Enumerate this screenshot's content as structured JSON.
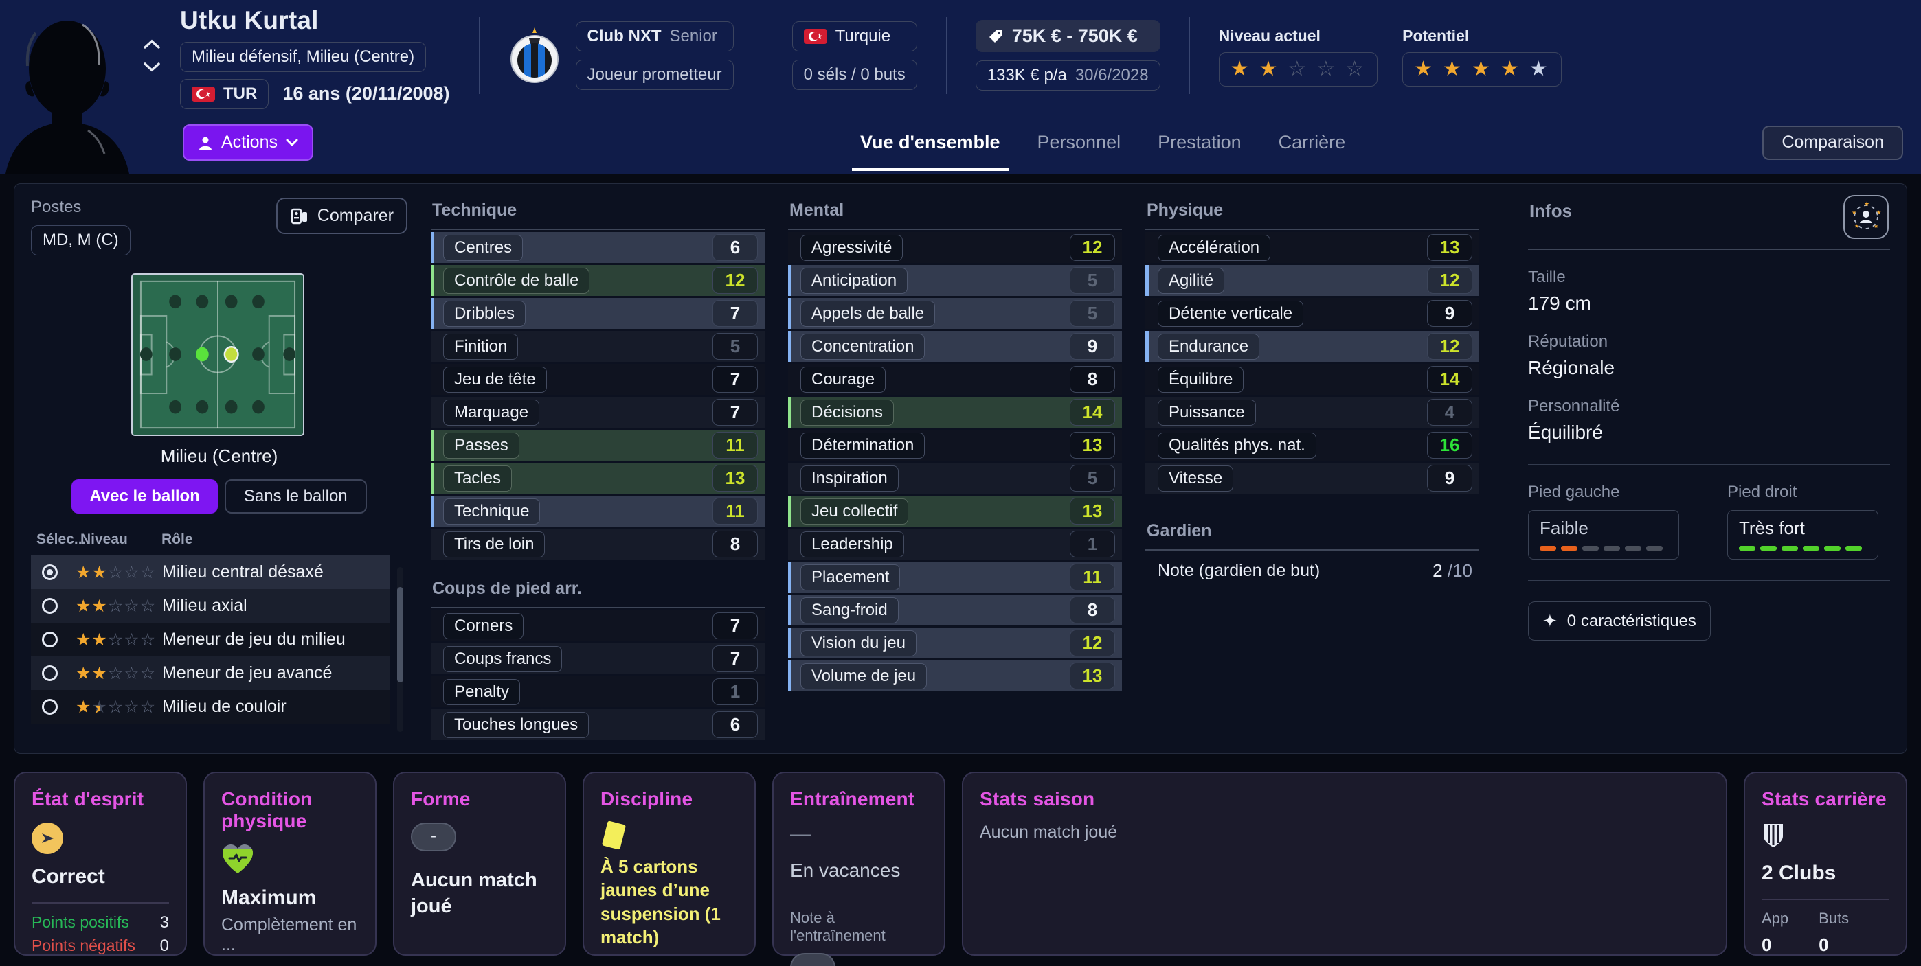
{
  "header": {
    "player_name": "Utku Kurtal",
    "position_summary": "Milieu défensif, Milieu (Centre)",
    "nationality_code": "TUR",
    "age": "16 ans (20/11/2008)",
    "club_name": "Club NXT",
    "club_team": "Senior",
    "player_status": "Joueur prometteur",
    "national_team": "Turquie",
    "intl_record": "0 séls / 0 buts",
    "transfer_value": "75K € - 750K €",
    "wage": "133K € p/a",
    "contract_expiry": "30/6/2028",
    "ability_current_label": "Niveau actuel",
    "ability_potential_label": "Potentiel",
    "stars": {
      "current_full": 2,
      "current_empty": 3,
      "potential_full": 4,
      "potential_silver": 1
    },
    "actions_label": "Actions",
    "tabs": [
      "Vue d'ensemble",
      "Personnel",
      "Prestation",
      "Carrière"
    ],
    "active_tab": "Vue d'ensemble",
    "comparison_label": "Comparaison"
  },
  "positions_panel": {
    "title": "Postes",
    "positions_value": "MD, M (C)",
    "compare_label": "Comparer",
    "pitch_caption": "Milieu (Centre)",
    "toggle_with_ball": "Avec le ballon",
    "toggle_without_ball": "Sans le ballon",
    "columns": {
      "select": "Sélec...",
      "level": "Niveau",
      "role": "Rôle"
    },
    "roles": [
      {
        "label": "Milieu central désaxé",
        "stars_full": 2,
        "stars_half": 0,
        "selected": true
      },
      {
        "label": "Milieu axial",
        "stars_full": 2,
        "stars_half": 0,
        "selected": false
      },
      {
        "label": "Meneur de jeu du milieu",
        "stars_full": 2,
        "stars_half": 0,
        "selected": false
      },
      {
        "label": "Meneur de jeu avancé",
        "stars_full": 2,
        "stars_half": 0,
        "selected": false
      },
      {
        "label": "Milieu de couloir",
        "stars_full": 1,
        "stars_half": 1,
        "selected": false
      }
    ]
  },
  "attributes": {
    "technique": {
      "title": "Technique",
      "rows": [
        {
          "label": "Centres",
          "value": 6,
          "highlight": "blue"
        },
        {
          "label": "Contrôle de balle",
          "value": 12,
          "highlight": "green"
        },
        {
          "label": "Dribbles",
          "value": 7,
          "highlight": "blue"
        },
        {
          "label": "Finition",
          "value": 5,
          "highlight": "none"
        },
        {
          "label": "Jeu de tête",
          "value": 7,
          "highlight": "none"
        },
        {
          "label": "Marquage",
          "value": 7,
          "highlight": "none"
        },
        {
          "label": "Passes",
          "value": 11,
          "highlight": "green"
        },
        {
          "label": "Tacles",
          "value": 13,
          "highlight": "green"
        },
        {
          "label": "Technique",
          "value": 11,
          "highlight": "blue"
        },
        {
          "label": "Tirs de loin",
          "value": 8,
          "highlight": "none"
        }
      ]
    },
    "set_pieces": {
      "title": "Coups de pied arr.",
      "rows": [
        {
          "label": "Corners",
          "value": 7,
          "highlight": "none"
        },
        {
          "label": "Coups francs",
          "value": 7,
          "highlight": "none"
        },
        {
          "label": "Penalty",
          "value": 1,
          "highlight": "none"
        },
        {
          "label": "Touches longues",
          "value": 6,
          "highlight": "none"
        }
      ]
    },
    "mental": {
      "title": "Mental",
      "rows": [
        {
          "label": "Agressivité",
          "value": 12,
          "highlight": "none"
        },
        {
          "label": "Anticipation",
          "value": 5,
          "highlight": "blue"
        },
        {
          "label": "Appels de balle",
          "value": 5,
          "highlight": "blue"
        },
        {
          "label": "Concentration",
          "value": 9,
          "highlight": "blue"
        },
        {
          "label": "Courage",
          "value": 8,
          "highlight": "none"
        },
        {
          "label": "Décisions",
          "value": 14,
          "highlight": "green"
        },
        {
          "label": "Détermination",
          "value": 13,
          "highlight": "none"
        },
        {
          "label": "Inspiration",
          "value": 5,
          "highlight": "none"
        },
        {
          "label": "Jeu collectif",
          "value": 13,
          "highlight": "green"
        },
        {
          "label": "Leadership",
          "value": 1,
          "highlight": "none"
        },
        {
          "label": "Placement",
          "value": 11,
          "highlight": "blue"
        },
        {
          "label": "Sang-froid",
          "value": 8,
          "highlight": "blue"
        },
        {
          "label": "Vision du jeu",
          "value": 12,
          "highlight": "blue"
        },
        {
          "label": "Volume de jeu",
          "value": 13,
          "highlight": "blue"
        }
      ]
    },
    "physical": {
      "title": "Physique",
      "rows": [
        {
          "label": "Accélération",
          "value": 13,
          "highlight": "none"
        },
        {
          "label": "Agilité",
          "value": 12,
          "highlight": "blue"
        },
        {
          "label": "Détente verticale",
          "value": 9,
          "highlight": "none"
        },
        {
          "label": "Endurance",
          "value": 12,
          "highlight": "blue"
        },
        {
          "label": "Équilibre",
          "value": 14,
          "highlight": "none"
        },
        {
          "label": "Puissance",
          "value": 4,
          "highlight": "none"
        },
        {
          "label": "Qualités phys. nat.",
          "value": 16,
          "highlight": "none"
        },
        {
          "label": "Vitesse",
          "value": 9,
          "highlight": "none"
        }
      ]
    },
    "goalkeeper": {
      "title": "Gardien",
      "row_label": "Note (gardien de but)",
      "value": "2",
      "suffix": "/10"
    }
  },
  "infos": {
    "title": "Infos",
    "height_label": "Taille",
    "height_value": "179 cm",
    "reputation_label": "Réputation",
    "reputation_value": "Régionale",
    "personality_label": "Personnalité",
    "personality_value": "Équilibré",
    "left_foot_label": "Pied gauche",
    "left_foot_value": "Faible",
    "left_foot_level": 2,
    "right_foot_label": "Pied droit",
    "right_foot_value": "Très fort",
    "right_foot_level": 6,
    "traits_label": "0 caractéristiques"
  },
  "cards": {
    "morale": {
      "title": "État d'esprit",
      "value": "Correct",
      "positive_label": "Points positifs",
      "positive_value": "3",
      "negative_label": "Points négatifs",
      "negative_value": "0"
    },
    "condition": {
      "title": "Condition physique",
      "value": "Maximum",
      "subtitle": "Complètement en ..."
    },
    "form": {
      "title": "Forme",
      "badge": "-",
      "value": "Aucun match joué"
    },
    "discipline": {
      "title": "Discipline",
      "value": "À 5 cartons jaunes d’une suspension (1 match)"
    },
    "training": {
      "title": "Entraînement",
      "dash": "—",
      "value": "En vacances",
      "note_label": "Note à l'entraînement",
      "badge": "-"
    },
    "season_stats": {
      "title": "Stats saison",
      "value": "Aucun match joué"
    },
    "career_stats": {
      "title": "Stats carrière",
      "value": "2 Clubs",
      "apps_label": "App",
      "apps_value": "0",
      "goals_label": "Buts",
      "goals_value": "0"
    }
  }
}
